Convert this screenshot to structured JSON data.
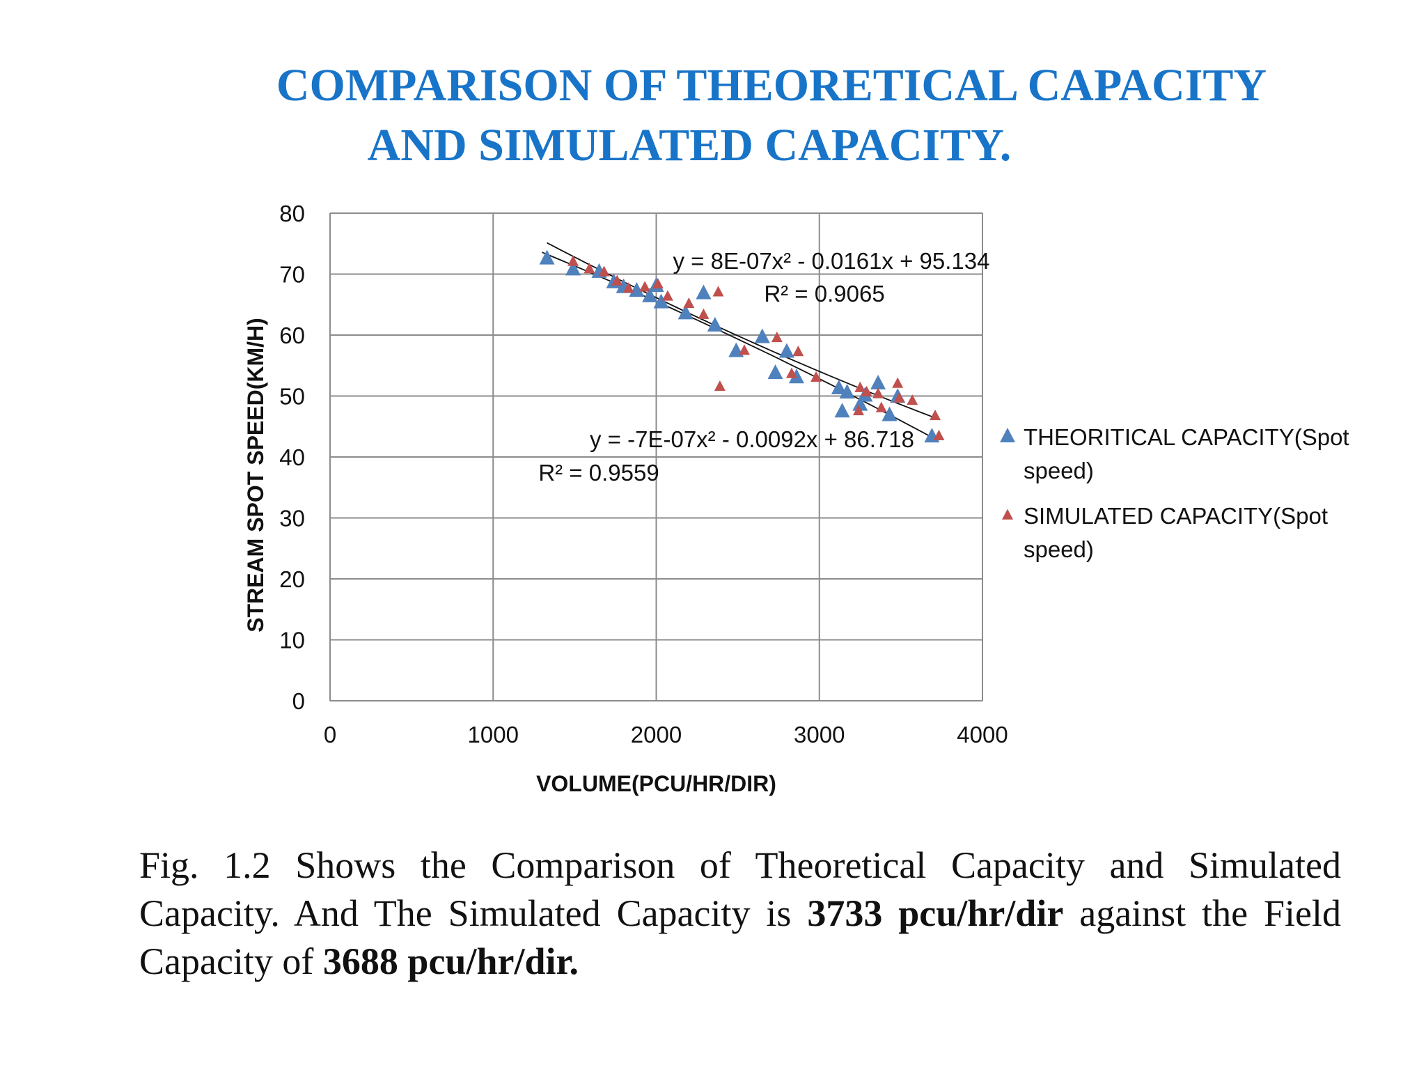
{
  "title": {
    "line1": "COMPARISON OF THEORETICAL CAPACITY",
    "line2": "AND SIMULATED CAPACITY."
  },
  "colors": {
    "title": "#1874c8",
    "theoretical": "#4f81bd",
    "simulated": "#c0504d",
    "grid": "#8c8c8c"
  },
  "chart_data": {
    "type": "scatter",
    "xlabel": "VOLUME(PCU/HR/DIR)",
    "ylabel": "STREAM SPOT SPEED(KM/H)",
    "xlim": [
      0,
      4000
    ],
    "ylim": [
      0,
      80
    ],
    "x_ticks": [
      "0",
      "1000",
      "2000",
      "3000",
      "4000"
    ],
    "y_ticks": [
      "0",
      "10",
      "20",
      "30",
      "40",
      "50",
      "60",
      "70",
      "80"
    ],
    "grid": true,
    "legend_position": "right",
    "series": [
      {
        "name": "THEORITICAL CAPACITY(Spot speed)",
        "legend_lines": [
          "THEORITICAL CAPACITY(Spot",
          "speed)"
        ],
        "marker": "triangle",
        "color": "#4f81bd",
        "points": [
          [
            1330,
            72.5
          ],
          [
            1490,
            70.7
          ],
          [
            1650,
            70.3
          ],
          [
            1740,
            68.6
          ],
          [
            1800,
            67.8
          ],
          [
            1880,
            67.2
          ],
          [
            1960,
            66.3
          ],
          [
            2000,
            68.0
          ],
          [
            2030,
            65.3
          ],
          [
            2180,
            63.5
          ],
          [
            2290,
            66.8
          ],
          [
            2360,
            61.5
          ],
          [
            2490,
            57.3
          ],
          [
            2650,
            59.6
          ],
          [
            2730,
            53.7
          ],
          [
            2800,
            57.2
          ],
          [
            2860,
            53.0
          ],
          [
            3120,
            51.2
          ],
          [
            3170,
            50.5
          ],
          [
            3140,
            47.4
          ],
          [
            3250,
            48.5
          ],
          [
            3280,
            50.0
          ],
          [
            3360,
            52.0
          ],
          [
            3430,
            46.8
          ],
          [
            3480,
            49.8
          ],
          [
            3690,
            43.3
          ]
        ],
        "trendline": {
          "type": "poly2",
          "coefficients": [
            -7e-07,
            -0.0092,
            86.718
          ],
          "range": [
            1300,
            3720
          ],
          "equation": "y = -7E-07x² - 0.0092x + 86.718",
          "r2": "R² = 0.9559"
        }
      },
      {
        "name": "SIMULATED CAPACITY(Spot speed)",
        "legend_lines": [
          "SIMULATED CAPACITY(Spot",
          "speed)"
        ],
        "marker": "triangle",
        "color": "#c0504d",
        "points": [
          [
            1490,
            72.0
          ],
          [
            1590,
            70.8
          ],
          [
            1680,
            70.3
          ],
          [
            1760,
            68.8
          ],
          [
            1830,
            67.6
          ],
          [
            1930,
            67.8
          ],
          [
            2010,
            68.3
          ],
          [
            2070,
            66.3
          ],
          [
            2200,
            65.1
          ],
          [
            2290,
            63.3
          ],
          [
            2380,
            67.0
          ],
          [
            2390,
            51.5
          ],
          [
            2540,
            57.4
          ],
          [
            2740,
            59.5
          ],
          [
            2830,
            53.6
          ],
          [
            2870,
            57.2
          ],
          [
            2980,
            53.0
          ],
          [
            3240,
            47.5
          ],
          [
            3250,
            51.3
          ],
          [
            3290,
            50.6
          ],
          [
            3360,
            50.3
          ],
          [
            3380,
            48.0
          ],
          [
            3480,
            52.0
          ],
          [
            3490,
            49.6
          ],
          [
            3570,
            49.2
          ],
          [
            3710,
            46.7
          ],
          [
            3733,
            43.4
          ]
        ],
        "trendline": {
          "type": "poly2",
          "coefficients": [
            8e-07,
            -0.0161,
            95.134
          ],
          "range": [
            1330,
            3720
          ],
          "equation": "y = 8E-07x² - 0.0161x + 95.134",
          "r2": "R² = 0.9065"
        }
      }
    ]
  },
  "caption": {
    "part1": "Fig. 1.2 Shows the Comparison of Theoretical Capacity and Simulated Capacity. And The  Simulated Capacity is ",
    "bold1": "3733 pcu/hr/dir",
    "part2": " against the Field  Capacity of ",
    "bold2": "3688 pcu/hr/dir."
  }
}
